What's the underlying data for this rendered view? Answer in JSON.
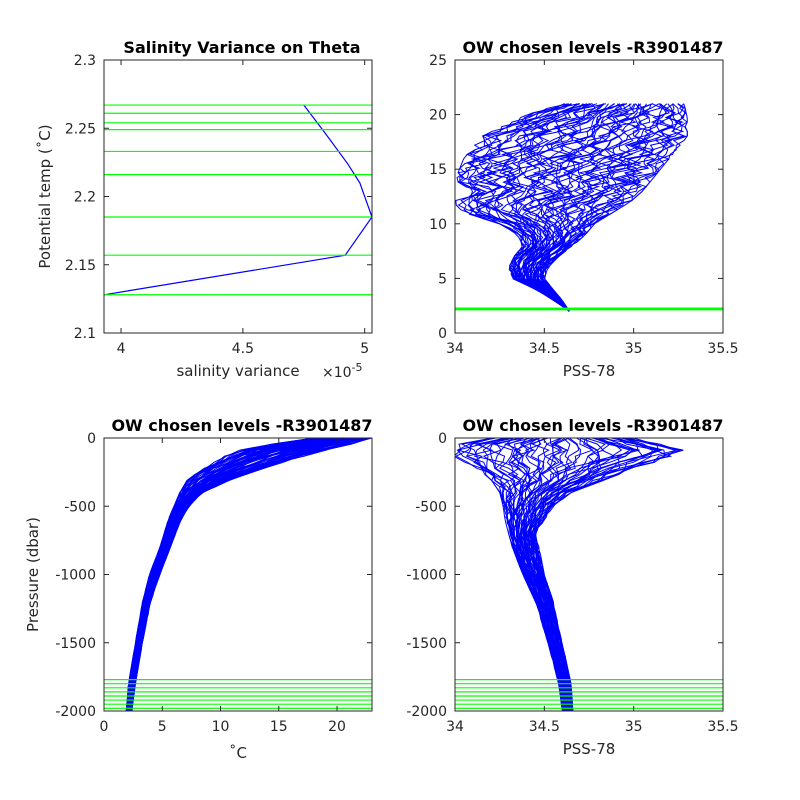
{
  "chart_data": [
    {
      "type": "line",
      "title": "Salinity Variance on Theta",
      "xlabel": "salinity variance",
      "x_exponent_label": "×10",
      "x_exponent": "-5",
      "ylabel": "Potential temp (˚C)",
      "xlim": [
        3.93,
        5.03
      ],
      "ylim": [
        2.1,
        2.3
      ],
      "xticks": [
        "4",
        "4.5",
        "5"
      ],
      "xtick_values": [
        4,
        4.5,
        5
      ],
      "yticks": [
        "2.1",
        "2.15",
        "2.2",
        "2.25",
        "2.3"
      ],
      "ytick_values": [
        2.1,
        2.15,
        2.2,
        2.25,
        2.3
      ],
      "series": [
        {
          "color": "#0000ff",
          "points": [
            [
              4.75,
              2.267
            ],
            [
              4.81,
              2.253
            ],
            [
              4.86,
              2.241
            ],
            [
              4.93,
              2.224
            ],
            [
              4.98,
              2.21
            ],
            [
              5.03,
              2.185
            ],
            [
              4.92,
              2.157
            ],
            [
              3.93,
              2.128
            ]
          ]
        }
      ],
      "hlines": {
        "color": "#00ff00",
        "values": [
          2.267,
          2.261,
          2.254,
          2.249,
          2.233,
          2.216,
          2.185,
          2.157,
          2.128
        ]
      }
    },
    {
      "type": "line",
      "title": "OW chosen levels -R3901487",
      "xlabel": "PSS-78",
      "ylabel": "",
      "xlim": [
        34,
        35.5
      ],
      "ylim": [
        0,
        25
      ],
      "xticks": [
        "34",
        "34.5",
        "35",
        "35.5"
      ],
      "xtick_values": [
        34,
        34.5,
        35,
        35.5
      ],
      "yticks": [
        "0",
        "5",
        "10",
        "15",
        "20",
        "25"
      ],
      "ytick_values": [
        0,
        5,
        10,
        15,
        20,
        25
      ],
      "profile_envelope": {
        "color": "#0000ff",
        "y": [
          2.0,
          3.0,
          4.0,
          5.0,
          6.0,
          7.0,
          8.0,
          9.0,
          10.0,
          11.0,
          12.0,
          13.0,
          14.0,
          16.0,
          18.0,
          20.0,
          21.0
        ],
        "min": [
          34.64,
          34.55,
          34.45,
          34.32,
          34.3,
          34.33,
          34.38,
          34.35,
          34.25,
          34.05,
          33.99,
          34.1,
          34.0,
          34.05,
          34.15,
          34.4,
          34.6
        ],
        "max": [
          34.64,
          34.6,
          34.55,
          34.5,
          34.52,
          34.58,
          34.66,
          34.73,
          34.78,
          34.88,
          34.98,
          35.05,
          35.1,
          35.2,
          35.3,
          35.3,
          35.28
        ]
      },
      "hlines": {
        "color": "#00ff00",
        "values": [
          2.267,
          2.261,
          2.254,
          2.249,
          2.233,
          2.216,
          2.185,
          2.157,
          2.128
        ]
      }
    },
    {
      "type": "line",
      "title": "OW chosen levels -R3901487",
      "xlabel": "˚C",
      "ylabel": "Pressure (dbar)",
      "xlim": [
        0,
        23
      ],
      "ylim": [
        -2000,
        0
      ],
      "xticks": [
        "0",
        "5",
        "10",
        "15",
        "20"
      ],
      "xtick_values": [
        0,
        5,
        10,
        15,
        20
      ],
      "yticks": [
        "-2000",
        "-1500",
        "-1000",
        "-500",
        "0"
      ],
      "ytick_values": [
        -2000,
        -1500,
        -1000,
        -500,
        0
      ],
      "profile_envelope": {
        "color": "#0000ff",
        "y": [
          -2000,
          -1800,
          -1500,
          -1200,
          -1000,
          -800,
          -600,
          -500,
          -400,
          -300,
          -200,
          -100,
          -50,
          0
        ],
        "min": [
          1.9,
          2.1,
          2.7,
          3.3,
          3.9,
          4.8,
          5.5,
          6.0,
          6.5,
          7.2,
          9.0,
          11.0,
          14.0,
          18.0
        ],
        "max": [
          2.4,
          2.7,
          3.3,
          4.0,
          4.8,
          5.7,
          6.6,
          7.3,
          8.5,
          11.0,
          14.5,
          18.5,
          21.0,
          23.0
        ]
      },
      "hlines": {
        "color": "#00ff00",
        "values": [
          -1770,
          -1800,
          -1830,
          -1860,
          -1890,
          -1920,
          -1950,
          -1980
        ]
      }
    },
    {
      "type": "line",
      "title": "OW chosen levels -R3901487",
      "xlabel": "PSS-78",
      "ylabel": "",
      "xlim": [
        34,
        35.5
      ],
      "ylim": [
        -2000,
        0
      ],
      "xticks": [
        "34",
        "34.5",
        "35",
        "35.5"
      ],
      "xtick_values": [
        34,
        34.5,
        35,
        35.5
      ],
      "yticks": [
        "-2000",
        "-1500",
        "-1000",
        "-500",
        "0"
      ],
      "ytick_values": [
        -2000,
        -1500,
        -1000,
        -500,
        0
      ],
      "profile_envelope": {
        "color": "#0000ff",
        "y": [
          -2000,
          -1800,
          -1500,
          -1200,
          -1000,
          -800,
          -700,
          -600,
          -500,
          -400,
          -300,
          -200,
          -150,
          -100,
          -50,
          0
        ],
        "min": [
          34.6,
          34.58,
          34.52,
          34.45,
          34.38,
          34.32,
          34.3,
          34.28,
          34.27,
          34.25,
          34.2,
          34.1,
          34.0,
          33.98,
          34.0,
          34.2
        ],
        "max": [
          34.66,
          34.65,
          34.6,
          34.55,
          34.5,
          34.47,
          34.45,
          34.5,
          34.55,
          34.65,
          34.85,
          35.05,
          35.2,
          35.3,
          35.2,
          35.0
        ]
      },
      "hlines": {
        "color": "#00ff00",
        "values": [
          -1770,
          -1800,
          -1830,
          -1860,
          -1890,
          -1920,
          -1950,
          -1980
        ]
      }
    }
  ]
}
